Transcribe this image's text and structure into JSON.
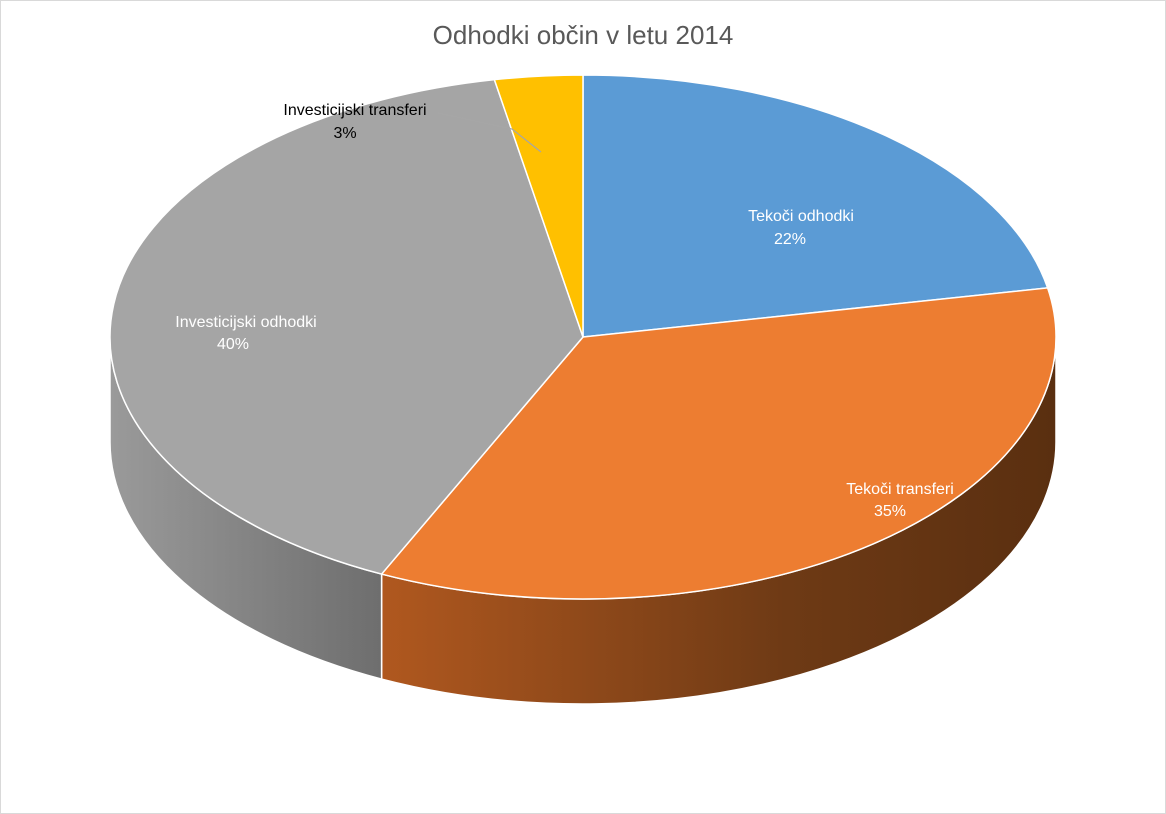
{
  "chart_data": {
    "type": "pie",
    "title": "Odhodki občin v letu 2014",
    "three_d": true,
    "slices": [
      {
        "name": "Tekoči odhodki",
        "percent_label": "22%",
        "value": 22,
        "color": "#5B9BD5",
        "label_color": "#ffffff"
      },
      {
        "name": "Tekoči transferi",
        "percent_label": "35%",
        "value": 35,
        "color": "#ED7D31",
        "label_color": "#ffffff"
      },
      {
        "name": "Investicijski odhodki",
        "percent_label": "40%",
        "value": 40,
        "color": "#A5A5A5",
        "label_color": "#ffffff"
      },
      {
        "name": "Investicijski transferi",
        "percent_label": "3%",
        "value": 3,
        "color": "#FFC000",
        "label_color": "#000000"
      }
    ]
  }
}
